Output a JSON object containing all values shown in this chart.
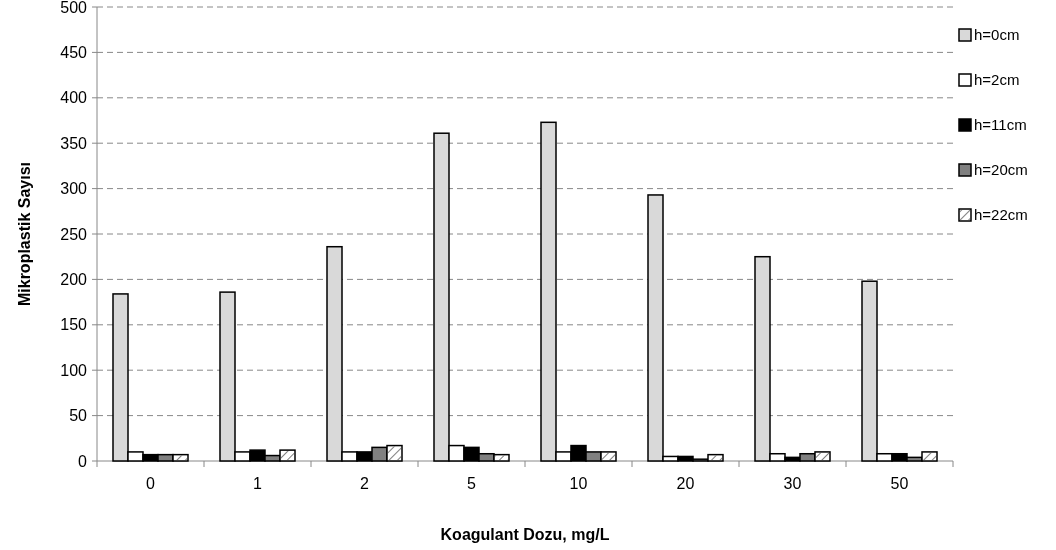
{
  "chart_data": {
    "type": "bar",
    "xlabel": "Koagulant Dozu, mg/L",
    "ylabel": "Mikroplastik Sayısı",
    "categories": [
      "0",
      "1",
      "2",
      "5",
      "10",
      "20",
      "30",
      "50"
    ],
    "ylim": [
      0,
      500
    ],
    "yticks": [
      0,
      50,
      100,
      150,
      200,
      250,
      300,
      350,
      400,
      450,
      500
    ],
    "grid": "y",
    "legend": "right",
    "series": [
      {
        "name": "h=0cm",
        "color": "#d9d9d9",
        "values": [
          184,
          186,
          236,
          361,
          373,
          293,
          225,
          198
        ]
      },
      {
        "name": "h=2cm",
        "color": "#ffffff",
        "values": [
          10,
          10,
          10,
          17,
          10,
          5,
          8,
          8
        ]
      },
      {
        "name": "h=11cm",
        "color": "#000000",
        "values": [
          7,
          12,
          10,
          15,
          17,
          5,
          4,
          8
        ]
      },
      {
        "name": "h=20cm",
        "color": "#808080",
        "values": [
          7,
          6,
          15,
          8,
          10,
          2,
          8,
          4
        ]
      },
      {
        "name": "h=22cm",
        "color": "#ffffff",
        "values": [
          7,
          12,
          17,
          7,
          10,
          7,
          10,
          10
        ]
      }
    ]
  }
}
